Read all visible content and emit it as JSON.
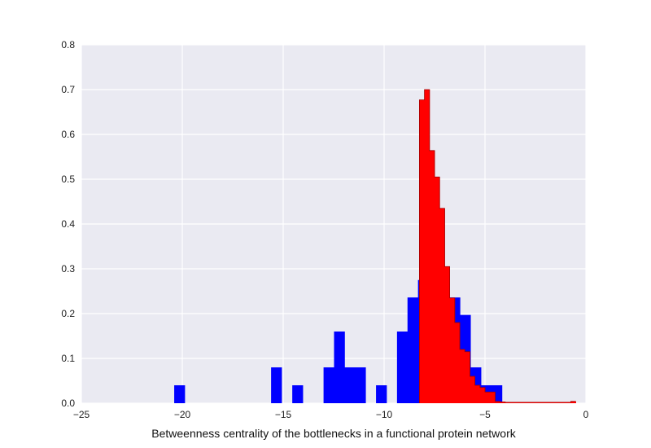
{
  "chart_data": {
    "type": "bar",
    "title": "",
    "xlabel": "Betweenness centrality of the bottlenecks in a functional protein network",
    "ylabel": "",
    "xlim": [
      -25,
      0
    ],
    "ylim": [
      0,
      0.8
    ],
    "xticks": [
      -25,
      -20,
      -15,
      -10,
      -5,
      0
    ],
    "xtick_labels": [
      "−25",
      "−20",
      "−15",
      "−10",
      "−5",
      "0"
    ],
    "yticks": [
      0.0,
      0.1,
      0.2,
      0.3,
      0.4,
      0.5,
      0.6,
      0.7,
      0.8
    ],
    "ytick_labels": [
      "0.0",
      "0.1",
      "0.2",
      "0.3",
      "0.4",
      "0.5",
      "0.6",
      "0.7",
      "0.8"
    ],
    "grid": true,
    "background": "#eaeaf2",
    "series": [
      {
        "color": "#0000ff",
        "histtype": "stepfilled",
        "bin_width": 0.52,
        "bins": [
          [
            -20.4,
            0.04
          ],
          [
            -15.6,
            0.08
          ],
          [
            -14.55,
            0.04
          ],
          [
            -13.0,
            0.08
          ],
          [
            -12.48,
            0.16
          ],
          [
            -11.96,
            0.08
          ],
          [
            -11.44,
            0.08
          ],
          [
            -10.4,
            0.04
          ],
          [
            -9.36,
            0.16
          ],
          [
            -8.84,
            0.236
          ],
          [
            -8.32,
            0.275
          ],
          [
            -7.8,
            0.275
          ],
          [
            -7.28,
            0.236
          ],
          [
            -6.76,
            0.236
          ],
          [
            -6.24,
            0.197
          ],
          [
            -5.72,
            0.08
          ],
          [
            -5.2,
            0.04
          ],
          [
            -4.68,
            0.04
          ]
        ]
      },
      {
        "color": "#ff0000",
        "histtype": "stepfilled",
        "bin_width": 0.25,
        "bins": [
          [
            -8.25,
            0.677
          ],
          [
            -8.0,
            0.7
          ],
          [
            -7.75,
            0.564
          ],
          [
            -7.5,
            0.505
          ],
          [
            -7.25,
            0.435
          ],
          [
            -7.0,
            0.305
          ],
          [
            -6.75,
            0.235
          ],
          [
            -6.5,
            0.18
          ],
          [
            -6.25,
            0.12
          ],
          [
            -6.0,
            0.115
          ],
          [
            -5.75,
            0.06
          ],
          [
            -5.5,
            0.04
          ],
          [
            -5.25,
            0.035
          ],
          [
            -5.0,
            0.025
          ],
          [
            -4.75,
            0.025
          ],
          [
            -4.5,
            0.004
          ],
          [
            -4.25,
            0.003
          ],
          [
            -4.0,
            0.002
          ],
          [
            -3.75,
            0.002
          ],
          [
            -3.5,
            0.002
          ],
          [
            -3.25,
            0.002
          ],
          [
            -3.0,
            0.002
          ],
          [
            -2.75,
            0.002
          ],
          [
            -2.5,
            0.002
          ],
          [
            -2.25,
            0.002
          ],
          [
            -2.0,
            0.002
          ],
          [
            -1.75,
            0.002
          ],
          [
            -1.5,
            0.002
          ],
          [
            -1.25,
            0.002
          ],
          [
            -1.0,
            0.002
          ],
          [
            -0.75,
            0.004
          ]
        ]
      }
    ]
  }
}
